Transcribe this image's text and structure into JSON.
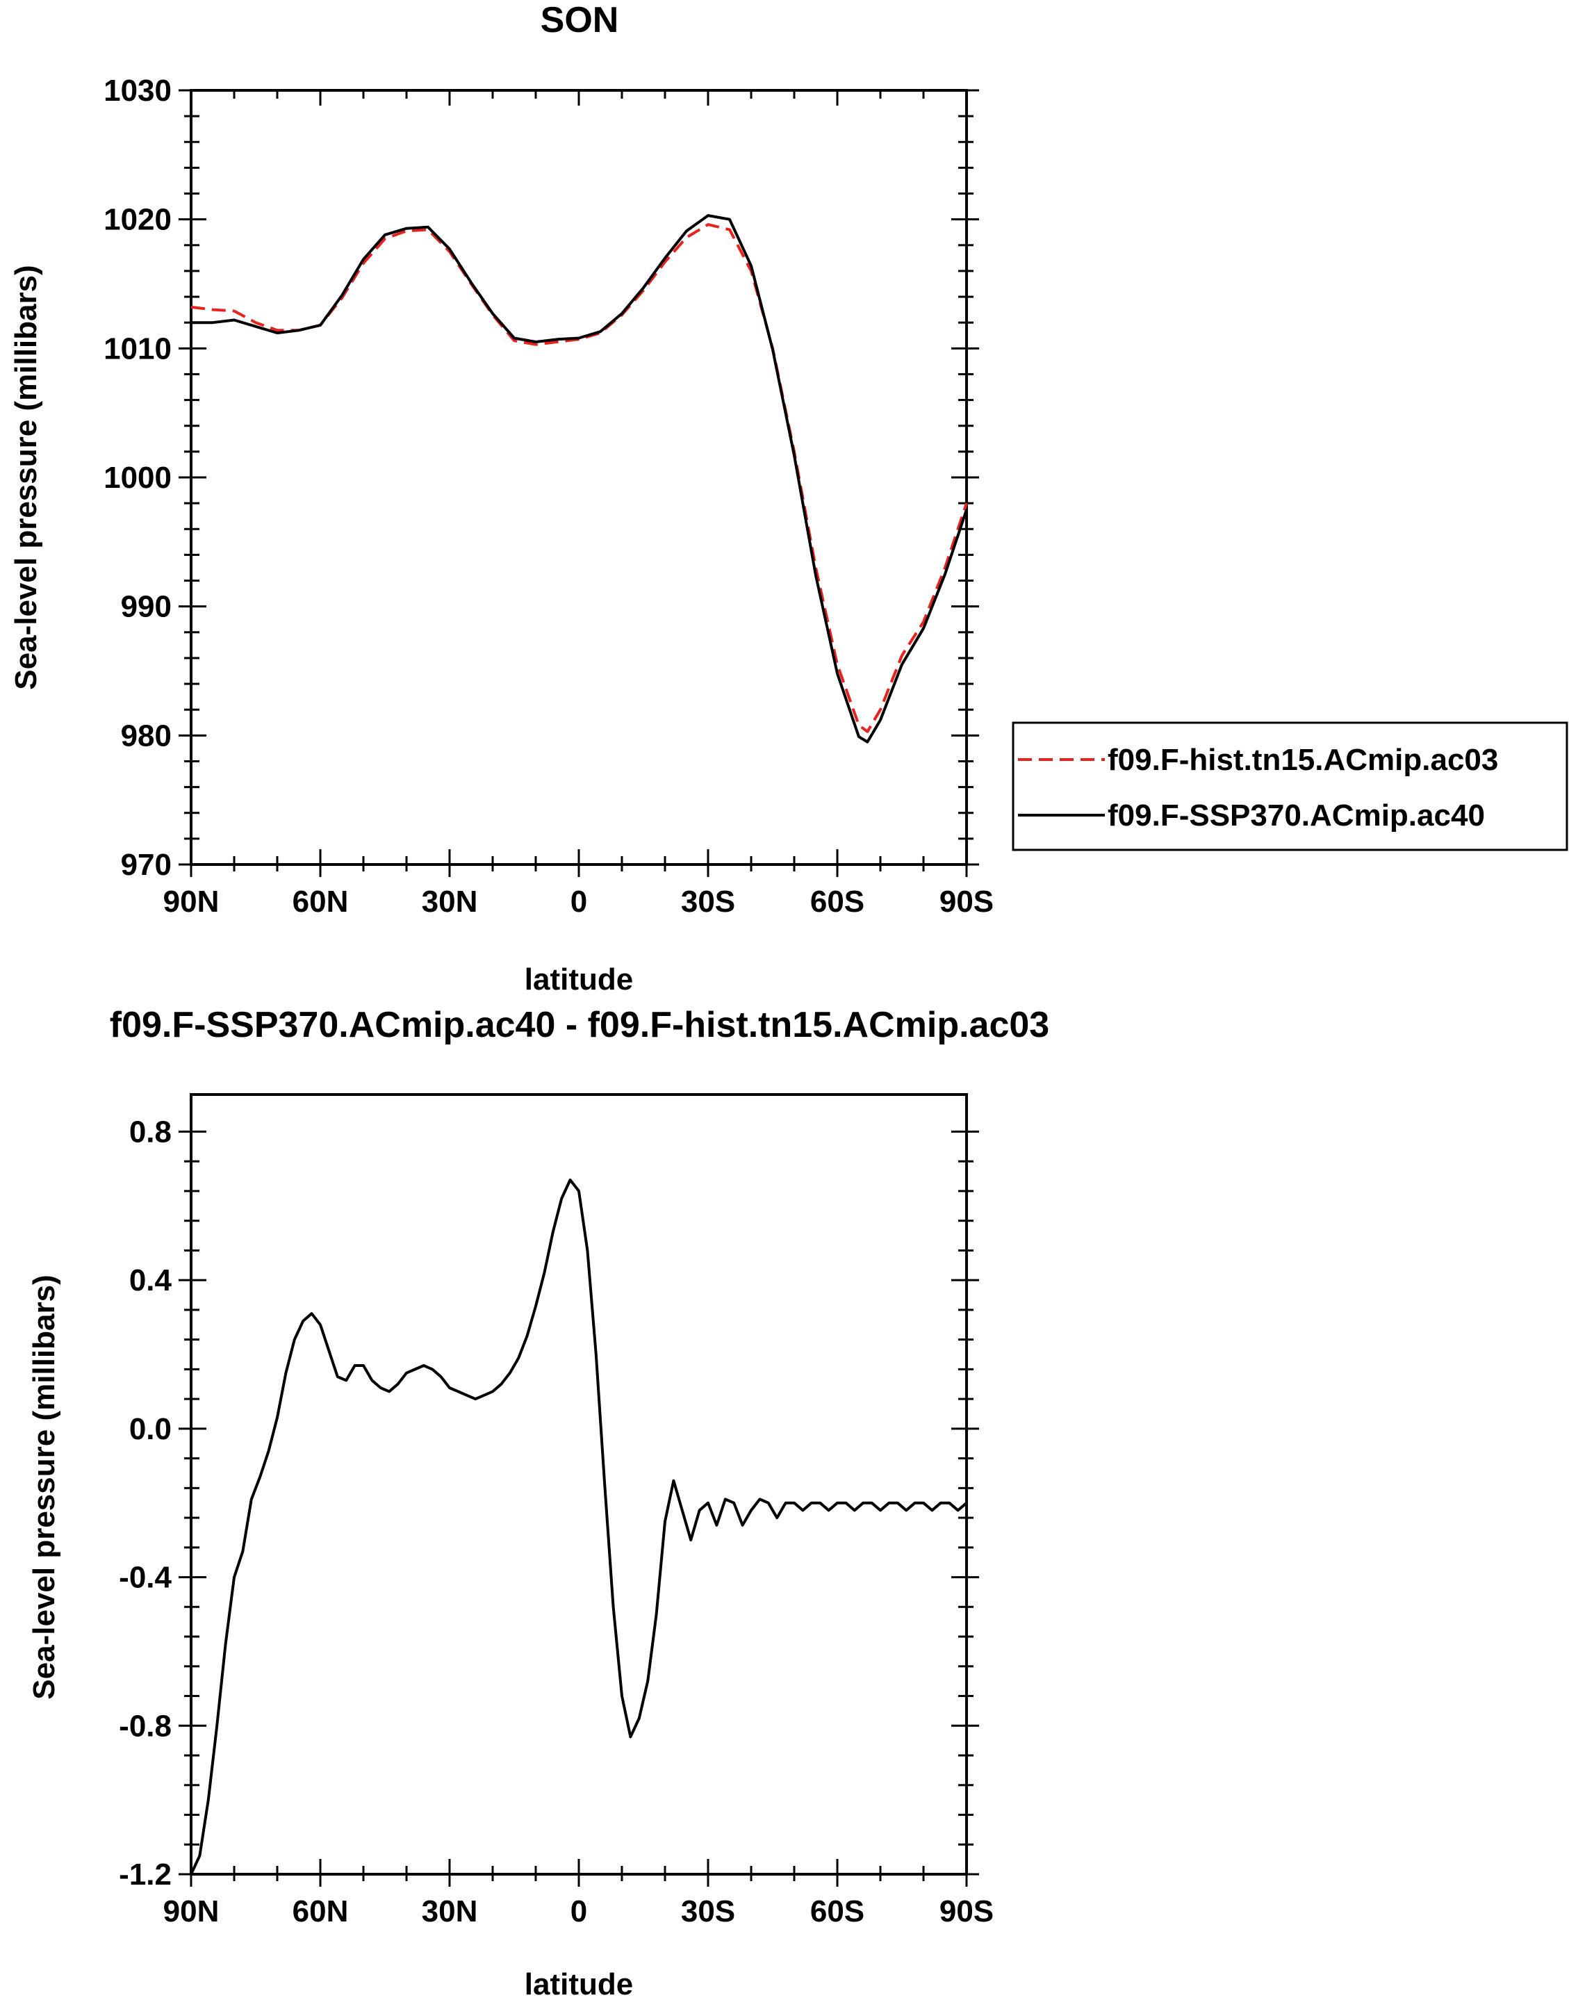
{
  "chart_data": [
    {
      "type": "line",
      "title": "SON",
      "xlabel": "latitude",
      "ylabel": "Sea-level pressure (millibars)",
      "xticks": [
        "90N",
        "60N",
        "30N",
        "0",
        "30S",
        "60S",
        "90S"
      ],
      "yticks": [
        "970",
        "980",
        "990",
        "1000",
        "1010",
        "1020",
        "1030"
      ],
      "xlim": [
        90,
        -90
      ],
      "ylim": [
        970,
        1030
      ],
      "legend_position": "right",
      "legend": [
        "f09.F-hist.tn15.ACmip.ac03",
        "f09.F-SSP370.ACmip.ac40"
      ],
      "series": [
        {
          "name": "f09.F-hist.tn15.ACmip.ac03",
          "color": "#e8221c",
          "dash": "dashed",
          "x": [
            90,
            85,
            80,
            75,
            70,
            65,
            60,
            55,
            50,
            45,
            40,
            35,
            30,
            25,
            20,
            15,
            10,
            5,
            0,
            -5,
            -10,
            -15,
            -20,
            -25,
            -30,
            -35,
            -40,
            -45,
            -50,
            -55,
            -60,
            -65,
            -67,
            -70,
            -75,
            -80,
            -85,
            -90
          ],
          "y": [
            1013.2,
            1013.0,
            1012.9,
            1012.0,
            1011.4,
            1011.4,
            1011.8,
            1013.9,
            1016.6,
            1018.5,
            1019.1,
            1019.2,
            1017.5,
            1015.0,
            1012.6,
            1010.6,
            1010.3,
            1010.5,
            1010.7,
            1011.2,
            1012.6,
            1014.5,
            1016.7,
            1018.6,
            1019.6,
            1019.2,
            1016.0,
            1010.0,
            1002.0,
            993.0,
            985.5,
            980.8,
            980.3,
            982.0,
            986.2,
            988.8,
            993.0,
            998.0
          ]
        },
        {
          "name": "f09.F-SSP370.ACmip.ac40",
          "color": "#000000",
          "dash": "solid",
          "x": [
            90,
            85,
            80,
            75,
            70,
            65,
            60,
            55,
            50,
            45,
            40,
            35,
            30,
            25,
            20,
            15,
            10,
            5,
            0,
            -5,
            -10,
            -15,
            -20,
            -25,
            -30,
            -35,
            -40,
            -45,
            -50,
            -55,
            -60,
            -65,
            -67,
            -70,
            -75,
            -80,
            -85,
            -90
          ],
          "y": [
            1012.0,
            1012.0,
            1012.2,
            1011.7,
            1011.2,
            1011.4,
            1011.8,
            1014.1,
            1016.9,
            1018.8,
            1019.3,
            1019.4,
            1017.7,
            1015.1,
            1012.7,
            1010.8,
            1010.5,
            1010.7,
            1010.8,
            1011.3,
            1012.7,
            1014.7,
            1017.0,
            1019.1,
            1020.3,
            1020.0,
            1016.4,
            1009.9,
            1001.7,
            992.4,
            984.8,
            979.9,
            979.5,
            981.2,
            985.5,
            988.3,
            992.5,
            997.5
          ]
        }
      ]
    },
    {
      "type": "line",
      "title": "f09.F-SSP370.ACmip.ac40 - f09.F-hist.tn15.ACmip.ac03",
      "xlabel": "latitude",
      "ylabel": "Sea-level pressure (millibars)",
      "xticks": [
        "90N",
        "60N",
        "30N",
        "0",
        "30S",
        "60S",
        "90S"
      ],
      "yticks": [
        "-1.2",
        "-0.8",
        "-0.4",
        "0.0",
        "0.4",
        "0.8"
      ],
      "xlim": [
        90,
        -90
      ],
      "ylim": [
        -1.2,
        0.9
      ],
      "series": [
        {
          "color": "#000000",
          "dash": "solid",
          "x": [
            90,
            88,
            86,
            84,
            82,
            80,
            78,
            76,
            74,
            72,
            70,
            68,
            66,
            64,
            62,
            60,
            58,
            56,
            54,
            52,
            50,
            48,
            46,
            44,
            42,
            40,
            38,
            36,
            34,
            32,
            30,
            28,
            26,
            24,
            22,
            20,
            18,
            16,
            14,
            12,
            10,
            8,
            6,
            4,
            2,
            0,
            -2,
            -4,
            -6,
            -8,
            -10,
            -12,
            -14,
            -16,
            -18,
            -20,
            -22,
            -24,
            -26,
            -28,
            -30,
            -32,
            -34,
            -36,
            -38,
            -40,
            -42,
            -44,
            -46,
            -48,
            -50,
            -52,
            -54,
            -56,
            -58,
            -60,
            -62,
            -64,
            -66,
            -68,
            -70,
            -72,
            -74,
            -76,
            -78,
            -80,
            -82,
            -84,
            -86,
            -88,
            -90
          ],
          "y": [
            -1.2,
            -1.15,
            -1.0,
            -0.8,
            -0.58,
            -0.4,
            -0.33,
            -0.19,
            -0.13,
            -0.06,
            0.03,
            0.15,
            0.24,
            0.29,
            0.31,
            0.28,
            0.21,
            0.14,
            0.13,
            0.17,
            0.17,
            0.13,
            0.11,
            0.1,
            0.12,
            0.15,
            0.16,
            0.17,
            0.16,
            0.14,
            0.11,
            0.1,
            0.09,
            0.08,
            0.09,
            0.1,
            0.12,
            0.15,
            0.19,
            0.25,
            0.33,
            0.42,
            0.53,
            0.62,
            0.67,
            0.64,
            0.48,
            0.2,
            -0.15,
            -0.48,
            -0.72,
            -0.83,
            -0.78,
            -0.68,
            -0.5,
            -0.25,
            -0.14,
            -0.22,
            -0.3,
            -0.22,
            -0.2,
            -0.26,
            -0.19,
            -0.2,
            -0.26,
            -0.22,
            -0.19,
            -0.2,
            -0.24,
            -0.2,
            -0.2,
            -0.22,
            -0.2,
            -0.2,
            -0.22,
            -0.2,
            -0.2,
            -0.22,
            -0.2,
            -0.2,
            -0.22,
            -0.2,
            -0.2,
            -0.22,
            -0.2,
            -0.2,
            -0.22,
            -0.2,
            -0.2,
            -0.22,
            -0.2
          ]
        }
      ]
    }
  ]
}
